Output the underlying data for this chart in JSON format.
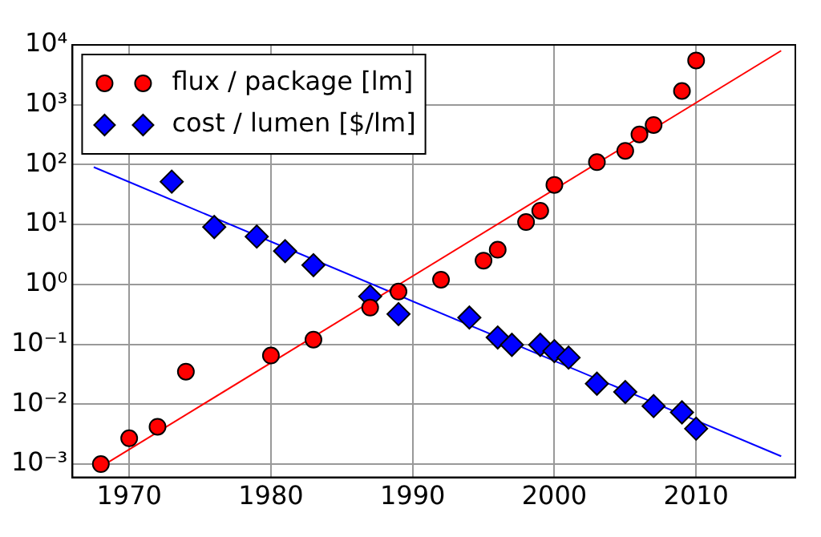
{
  "chart_data": {
    "type": "scatter",
    "xlim": [
      1966,
      2017
    ],
    "xticks": [
      1970,
      1980,
      1990,
      2000,
      2010
    ],
    "ylim": [
      0.0006,
      10000
    ],
    "log": "y",
    "yticks": [
      {
        "value": 0.001,
        "label": "10⁻³"
      },
      {
        "value": 0.01,
        "label": "10⁻²"
      },
      {
        "value": 0.1,
        "label": "10⁻¹"
      },
      {
        "value": 1,
        "label": "10⁰"
      },
      {
        "value": 10,
        "label": "10¹"
      },
      {
        "value": 100,
        "label": "10²"
      },
      {
        "value": 1000,
        "label": "10³"
      },
      {
        "value": 10000,
        "label": "10⁴"
      }
    ],
    "grid": true,
    "legend": "top left",
    "series": [
      {
        "name": "flux / package [lm]",
        "color": "#ff0000",
        "marker": "circle",
        "x": [
          1968,
          1970,
          1972,
          1974,
          1980,
          1983,
          1987,
          1989,
          1992,
          1995,
          1996,
          1998,
          1999,
          2000,
          2003,
          2005,
          2006,
          2007,
          2009,
          2010
        ],
        "values": [
          0.001,
          0.0027,
          0.0042,
          0.035,
          0.065,
          0.12,
          0.41,
          0.76,
          1.2,
          2.5,
          3.8,
          11,
          17,
          46,
          110,
          170,
          320,
          460,
          1700,
          5500
        ]
      },
      {
        "name": "cost / lumen [$/lm]",
        "color": "#0000ff",
        "marker": "diamond",
        "x": [
          1973,
          1976,
          1979,
          1981,
          1983,
          1987,
          1989,
          1994,
          1996,
          1997,
          1999,
          2000,
          2001,
          2003,
          2005,
          2007,
          2009,
          2010
        ],
        "values": [
          52,
          9.1,
          6.3,
          3.6,
          2.1,
          0.63,
          0.32,
          0.28,
          0.13,
          0.098,
          0.098,
          0.077,
          0.06,
          0.022,
          0.016,
          0.0093,
          0.0073,
          0.0039
        ]
      },
      {
        "type": "line",
        "color": "#ff0000",
        "marker": "none",
        "x": [
          1968,
          2016
        ],
        "values": [
          0.0009,
          8000
        ]
      },
      {
        "type": "line",
        "color": "#0000ff",
        "marker": "none",
        "x": [
          1967.5,
          2016
        ],
        "values": [
          91,
          0.00135
        ]
      }
    ]
  }
}
